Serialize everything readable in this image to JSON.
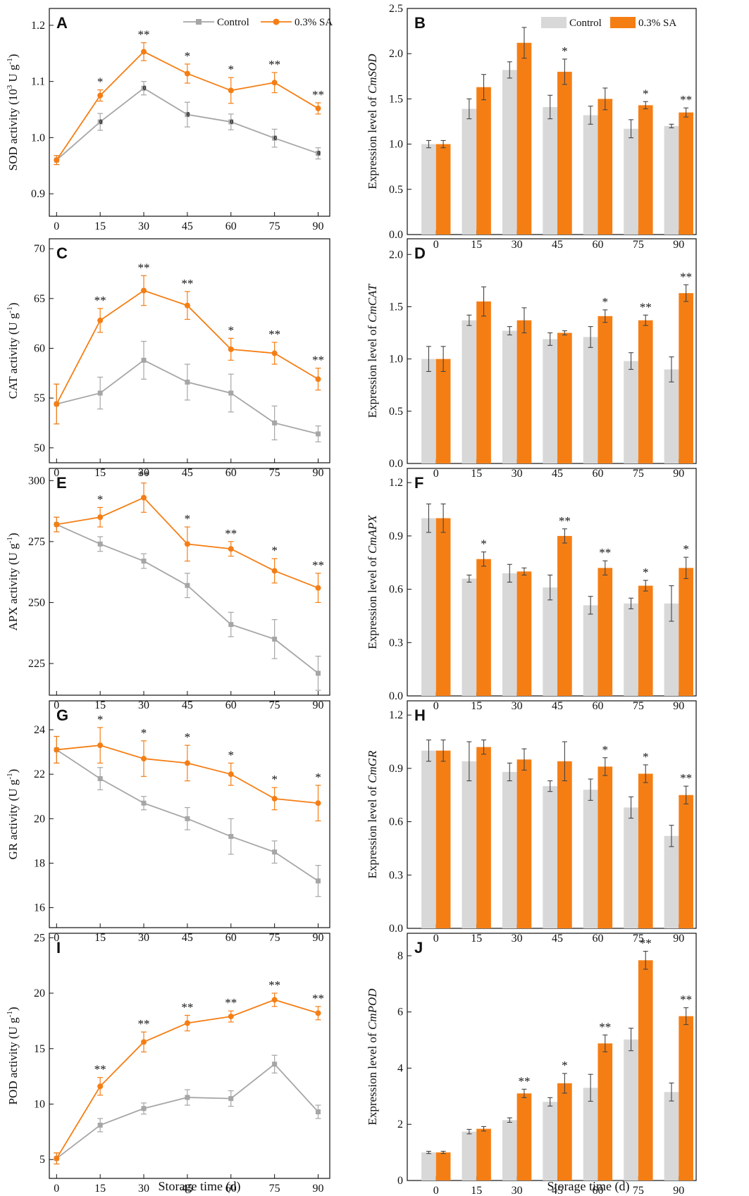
{
  "figure": {
    "x_axis_title": "Storage time (d)",
    "legend": {
      "control_label": "Control",
      "treatment_label": "0.3% SA"
    },
    "colors": {
      "control_line": "#a6a6a6",
      "treatment_line": "#f57e14",
      "control_bar": "#d8d8d8",
      "treatment_bar": "#f57e14",
      "axis": "#111111",
      "error": "#444444"
    }
  },
  "chart_data": [
    {
      "id": "A",
      "type": "line",
      "letter": "A",
      "ylabel_text": "SOD activity (10",
      "ylabel_sup": "3",
      "ylabel_text2": " U g",
      "ylabel_sup2": "-1",
      "ylabel_close": ")",
      "x": [
        0,
        15,
        30,
        45,
        60,
        75,
        90
      ],
      "ylim": [
        0.86,
        1.23
      ],
      "yticks": [
        0.9,
        1.0,
        1.1,
        1.2
      ],
      "decimals": 1,
      "series": [
        {
          "name": "Control",
          "values": [
            0.96,
            1.028,
            1.088,
            1.041,
            1.028,
            0.999,
            0.972
          ],
          "errors": [
            0.008,
            0.015,
            0.012,
            0.022,
            0.014,
            0.016,
            0.01
          ]
        },
        {
          "name": "0.3% SA",
          "values": [
            0.96,
            1.075,
            1.153,
            1.114,
            1.084,
            1.098,
            1.052
          ],
          "errors": [
            0.008,
            0.01,
            0.016,
            0.017,
            0.023,
            0.018,
            0.01
          ]
        }
      ],
      "markers": [
        "",
        "*",
        "**",
        "*",
        "*",
        "**",
        "**"
      ],
      "zero_labels": [
        "",
        "0",
        "0",
        "0",
        "0",
        "0",
        "0"
      ],
      "legend": true
    },
    {
      "id": "B",
      "type": "bar",
      "letter": "B",
      "ylabel_text": "Expression level of ",
      "ylabel_italic": "CmSOD",
      "categories": [
        "0",
        "15",
        "30",
        "45",
        "60",
        "75",
        "90"
      ],
      "ylim": [
        0,
        2.5
      ],
      "yticks": [
        0.0,
        0.5,
        1.0,
        1.5,
        2.0,
        2.5
      ],
      "decimals": 1,
      "series": [
        {
          "name": "Control",
          "values": [
            1.0,
            1.39,
            1.82,
            1.41,
            1.32,
            1.17,
            1.2
          ],
          "errors": [
            0.04,
            0.11,
            0.09,
            0.13,
            0.1,
            0.1,
            0.02
          ]
        },
        {
          "name": "0.3% SA",
          "values": [
            1.0,
            1.63,
            2.12,
            1.8,
            1.5,
            1.43,
            1.35
          ],
          "errors": [
            0.04,
            0.14,
            0.17,
            0.14,
            0.12,
            0.04,
            0.05
          ]
        }
      ],
      "markers": [
        "",
        "",
        "",
        "*",
        "",
        "*",
        "**"
      ],
      "legend": true
    },
    {
      "id": "C",
      "type": "line",
      "letter": "C",
      "ylabel_text": "CAT activity (U g",
      "ylabel_sup": "-1",
      "ylabel_text2": "",
      "ylabel_sup2": "",
      "ylabel_close": ")",
      "x": [
        0,
        15,
        30,
        45,
        60,
        75,
        90
      ],
      "ylim": [
        48.5,
        71
      ],
      "yticks": [
        50,
        55,
        60,
        65,
        70
      ],
      "decimals": 0,
      "series": [
        {
          "name": "Control",
          "values": [
            54.4,
            55.5,
            58.8,
            56.6,
            55.5,
            52.5,
            51.4
          ],
          "errors": [
            2.0,
            1.6,
            1.9,
            1.8,
            1.9,
            1.7,
            0.8
          ]
        },
        {
          "name": "0.3% SA",
          "values": [
            54.4,
            62.8,
            65.8,
            64.3,
            59.9,
            59.5,
            56.9
          ],
          "errors": [
            2.0,
            1.2,
            1.5,
            1.4,
            1.1,
            1.1,
            1.1
          ]
        }
      ],
      "markers": [
        "",
        "**",
        "**",
        "**",
        "*",
        "**",
        "**"
      ],
      "legend": false
    },
    {
      "id": "D",
      "type": "bar",
      "letter": "D",
      "ylabel_text": "Expression level of ",
      "ylabel_italic": "CmCAT",
      "categories": [
        "0",
        "15",
        "30",
        "45",
        "60",
        "75",
        "90"
      ],
      "ylim": [
        0,
        2.15
      ],
      "yticks": [
        0.0,
        0.5,
        1.0,
        1.5,
        2.0
      ],
      "decimals": 1,
      "series": [
        {
          "name": "Control",
          "values": [
            1.0,
            1.37,
            1.27,
            1.19,
            1.21,
            0.98,
            0.9
          ],
          "errors": [
            0.12,
            0.05,
            0.04,
            0.06,
            0.1,
            0.08,
            0.12
          ]
        },
        {
          "name": "0.3% SA",
          "values": [
            1.0,
            1.55,
            1.37,
            1.25,
            1.41,
            1.37,
            1.63
          ],
          "errors": [
            0.12,
            0.14,
            0.12,
            0.02,
            0.06,
            0.05,
            0.08
          ]
        }
      ],
      "markers": [
        "",
        "",
        "",
        "",
        "*",
        "**",
        "**"
      ],
      "legend": false
    },
    {
      "id": "E",
      "type": "line",
      "letter": "E",
      "ylabel_text": "APX activity (U g",
      "ylabel_sup": "-1",
      "ylabel_text2": "",
      "ylabel_sup2": "",
      "ylabel_close": ")",
      "x": [
        0,
        15,
        30,
        45,
        60,
        75,
        90
      ],
      "ylim": [
        212,
        305
      ],
      "yticks": [
        225,
        250,
        275,
        300
      ],
      "decimals": 0,
      "series": [
        {
          "name": "Control",
          "values": [
            282,
            274,
            267,
            257,
            241,
            235,
            221
          ],
          "errors": [
            3,
            3,
            3,
            5,
            5,
            8,
            7
          ]
        },
        {
          "name": "0.3% SA",
          "values": [
            282,
            285,
            293,
            274,
            272,
            263,
            256
          ],
          "errors": [
            3,
            4,
            6,
            7,
            3,
            5,
            6
          ]
        }
      ],
      "markers": [
        "",
        "*",
        "**",
        "*",
        "**",
        "*",
        "**"
      ],
      "legend": false
    },
    {
      "id": "F",
      "type": "bar",
      "letter": "F",
      "ylabel_text": "Expression level of ",
      "ylabel_italic": "CmAPX",
      "categories": [
        "0",
        "15",
        "30",
        "45",
        "60",
        "75",
        "90"
      ],
      "ylim": [
        0,
        1.28
      ],
      "yticks": [
        0.0,
        0.3,
        0.6,
        0.9,
        1.2
      ],
      "decimals": 1,
      "series": [
        {
          "name": "Control",
          "values": [
            1.0,
            0.66,
            0.69,
            0.61,
            0.51,
            0.52,
            0.52
          ],
          "errors": [
            0.08,
            0.02,
            0.05,
            0.07,
            0.05,
            0.03,
            0.1
          ]
        },
        {
          "name": "0.3% SA",
          "values": [
            1.0,
            0.77,
            0.7,
            0.9,
            0.72,
            0.62,
            0.72
          ],
          "errors": [
            0.08,
            0.04,
            0.02,
            0.04,
            0.04,
            0.03,
            0.06
          ]
        }
      ],
      "markers": [
        "",
        "*",
        "",
        "**",
        "**",
        "*",
        "*"
      ],
      "legend": false
    },
    {
      "id": "G",
      "type": "line",
      "letter": "G",
      "ylabel_text": "GR activity (U g",
      "ylabel_sup": "-1",
      "ylabel_text2": "",
      "ylabel_sup2": "",
      "ylabel_close": ")",
      "x": [
        0,
        15,
        30,
        45,
        60,
        75,
        90
      ],
      "ylim": [
        15.1,
        25.3
      ],
      "yticks": [
        16,
        18,
        20,
        22,
        24
      ],
      "decimals": 0,
      "series": [
        {
          "name": "Control",
          "values": [
            23.1,
            21.8,
            20.7,
            20.0,
            19.2,
            18.5,
            17.2
          ],
          "errors": [
            0.6,
            0.5,
            0.3,
            0.5,
            0.8,
            0.5,
            0.7
          ]
        },
        {
          "name": "0.3% SA",
          "values": [
            23.1,
            23.3,
            22.7,
            22.5,
            22.0,
            20.9,
            20.7
          ],
          "errors": [
            0.6,
            0.8,
            0.8,
            0.8,
            0.5,
            0.5,
            0.8
          ]
        }
      ],
      "markers": [
        "",
        "*",
        "*",
        "*",
        "*",
        "*",
        "*"
      ],
      "legend": false
    },
    {
      "id": "H",
      "type": "bar",
      "letter": "H",
      "ylabel_text": "Expression level of ",
      "ylabel_italic": "CmGR",
      "categories": [
        "0",
        "15",
        "30",
        "45",
        "60",
        "75",
        "90"
      ],
      "ylim": [
        0,
        1.28
      ],
      "yticks": [
        0.0,
        0.3,
        0.6,
        0.9,
        1.2
      ],
      "decimals": 1,
      "series": [
        {
          "name": "Control",
          "values": [
            1.0,
            0.94,
            0.88,
            0.8,
            0.78,
            0.68,
            0.52
          ],
          "errors": [
            0.06,
            0.11,
            0.05,
            0.03,
            0.06,
            0.06,
            0.06
          ]
        },
        {
          "name": "0.3% SA",
          "values": [
            1.0,
            1.02,
            0.95,
            0.94,
            0.91,
            0.87,
            0.75
          ],
          "errors": [
            0.06,
            0.04,
            0.06,
            0.11,
            0.05,
            0.05,
            0.05
          ]
        }
      ],
      "markers": [
        "",
        "",
        "",
        "",
        "*",
        "*",
        "**"
      ],
      "legend": false
    },
    {
      "id": "I",
      "type": "line",
      "letter": "I",
      "ylabel_text": "POD activity (U g",
      "ylabel_sup": "-1",
      "ylabel_text2": "",
      "ylabel_sup2": "",
      "ylabel_close": ")",
      "x": [
        0,
        15,
        30,
        45,
        60,
        75,
        90
      ],
      "ylim": [
        3.3,
        25.4
      ],
      "yticks": [
        5,
        10,
        15,
        20,
        25
      ],
      "decimals": 0,
      "series": [
        {
          "name": "Control",
          "values": [
            5.1,
            8.1,
            9.6,
            10.6,
            10.5,
            13.6,
            9.3
          ],
          "errors": [
            0.5,
            0.6,
            0.5,
            0.7,
            0.7,
            0.8,
            0.6
          ]
        },
        {
          "name": "0.3% SA",
          "values": [
            5.1,
            11.6,
            15.6,
            17.3,
            17.9,
            19.4,
            18.2
          ],
          "errors": [
            0.5,
            0.8,
            0.9,
            0.7,
            0.5,
            0.6,
            0.6
          ]
        }
      ],
      "markers": [
        "",
        "**",
        "**",
        "**",
        "**",
        "**",
        "**"
      ],
      "legend": false
    },
    {
      "id": "J",
      "type": "bar",
      "letter": "J",
      "ylabel_text": "Expression level of ",
      "ylabel_italic": "CmPOD",
      "categories": [
        "0",
        "15",
        "30",
        "45",
        "60",
        "75",
        "90"
      ],
      "ylim": [
        0,
        8.8
      ],
      "yticks": [
        0,
        2,
        4,
        6,
        8
      ],
      "decimals": 0,
      "series": [
        {
          "name": "Control",
          "values": [
            1.0,
            1.74,
            2.15,
            2.8,
            3.3,
            5.02,
            3.15
          ],
          "errors": [
            0.04,
            0.08,
            0.08,
            0.15,
            0.48,
            0.4,
            0.32
          ]
        },
        {
          "name": "0.3% SA",
          "values": [
            1.0,
            1.84,
            3.1,
            3.46,
            4.88,
            7.84,
            5.85
          ],
          "errors": [
            0.04,
            0.08,
            0.15,
            0.35,
            0.3,
            0.32,
            0.3
          ]
        }
      ],
      "markers": [
        "",
        "",
        "**",
        "*",
        "**",
        "**",
        "**"
      ],
      "legend": false
    }
  ]
}
